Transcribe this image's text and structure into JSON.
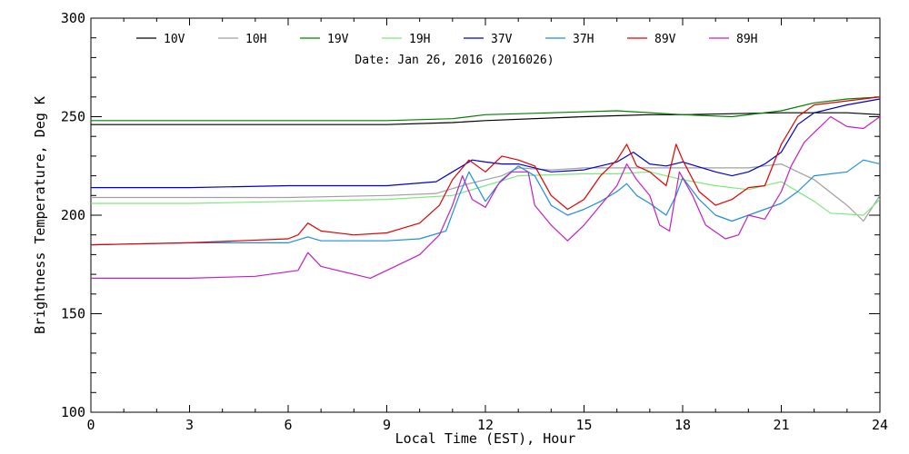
{
  "chart_data": {
    "type": "line",
    "title": "Date: Jan 26, 2016 (2016026)",
    "xlabel": "Local Time (EST), Hour",
    "ylabel": "Brightness Temperature, Deg K",
    "xlim": [
      0,
      24
    ],
    "ylim": [
      100,
      300
    ],
    "x_ticks": [
      "0",
      "3",
      "6",
      "9",
      "12",
      "15",
      "18",
      "21",
      "24"
    ],
    "y_ticks": [
      "100",
      "150",
      "200",
      "250",
      "300"
    ],
    "grid": false,
    "legend_position": "top",
    "series": [
      {
        "name": "10V",
        "color": "#000000",
        "points": [
          [
            0,
            246
          ],
          [
            3,
            246
          ],
          [
            6,
            246
          ],
          [
            9,
            246
          ],
          [
            11,
            247
          ],
          [
            12,
            248
          ],
          [
            15,
            250
          ],
          [
            17,
            251
          ],
          [
            18,
            251
          ],
          [
            21,
            252
          ],
          [
            23,
            252
          ],
          [
            24,
            251
          ]
        ]
      },
      {
        "name": "10H",
        "color": "#a0a0a0",
        "points": [
          [
            0,
            209
          ],
          [
            3,
            209
          ],
          [
            6,
            209
          ],
          [
            9,
            210
          ],
          [
            10.5,
            211
          ],
          [
            11.5,
            216
          ],
          [
            12.5,
            220
          ],
          [
            13,
            224
          ],
          [
            14,
            223
          ],
          [
            15,
            224
          ],
          [
            16.5,
            224
          ],
          [
            18,
            224
          ],
          [
            20,
            224
          ],
          [
            21,
            226
          ],
          [
            22,
            218
          ],
          [
            23,
            205
          ],
          [
            23.5,
            197
          ],
          [
            24,
            210
          ]
        ]
      },
      {
        "name": "19V",
        "color": "#008000",
        "points": [
          [
            0,
            248
          ],
          [
            3,
            248
          ],
          [
            6,
            248
          ],
          [
            9,
            248
          ],
          [
            11,
            249
          ],
          [
            12,
            251
          ],
          [
            14,
            252
          ],
          [
            16,
            253
          ],
          [
            18,
            251
          ],
          [
            19.5,
            250
          ],
          [
            21,
            253
          ],
          [
            22,
            257
          ],
          [
            23,
            259
          ],
          [
            24,
            260
          ]
        ]
      },
      {
        "name": "19H",
        "color": "#7ee87e",
        "points": [
          [
            0,
            206
          ],
          [
            3,
            206
          ],
          [
            6,
            207
          ],
          [
            9,
            208
          ],
          [
            11,
            210
          ],
          [
            12,
            215
          ],
          [
            13,
            220
          ],
          [
            15,
            221
          ],
          [
            16,
            221
          ],
          [
            17,
            222
          ],
          [
            18,
            218
          ],
          [
            19,
            215
          ],
          [
            20,
            213
          ],
          [
            21,
            217
          ],
          [
            22,
            207
          ],
          [
            22.5,
            201
          ],
          [
            23.5,
            200
          ],
          [
            24,
            208
          ]
        ]
      },
      {
        "name": "37V",
        "color": "#0000cc",
        "points": [
          [
            0,
            214
          ],
          [
            3,
            214
          ],
          [
            6,
            215
          ],
          [
            9,
            215
          ],
          [
            10.5,
            217
          ],
          [
            11,
            222
          ],
          [
            11.6,
            228
          ],
          [
            12,
            227
          ],
          [
            12.5,
            226
          ],
          [
            13,
            226
          ],
          [
            13.5,
            224
          ],
          [
            14,
            222
          ],
          [
            15,
            223
          ],
          [
            16,
            227
          ],
          [
            16.5,
            232
          ],
          [
            17,
            226
          ],
          [
            17.5,
            225
          ],
          [
            18,
            227
          ],
          [
            19,
            222
          ],
          [
            19.5,
            220
          ],
          [
            20,
            222
          ],
          [
            20.5,
            226
          ],
          [
            21,
            232
          ],
          [
            21.5,
            246
          ],
          [
            22,
            252
          ],
          [
            23,
            256
          ],
          [
            24,
            259
          ]
        ]
      },
      {
        "name": "37H",
        "color": "#1e8ee0",
        "points": [
          [
            0,
            185
          ],
          [
            3,
            186
          ],
          [
            6,
            186
          ],
          [
            6.6,
            189
          ],
          [
            7,
            187
          ],
          [
            9,
            187
          ],
          [
            10,
            188
          ],
          [
            10.8,
            192
          ],
          [
            11.2,
            210
          ],
          [
            11.5,
            222
          ],
          [
            12,
            207
          ],
          [
            12.5,
            218
          ],
          [
            13,
            225
          ],
          [
            13.5,
            220
          ],
          [
            14,
            205
          ],
          [
            14.5,
            200
          ],
          [
            15,
            203
          ],
          [
            15.5,
            207
          ],
          [
            16,
            212
          ],
          [
            16.3,
            216
          ],
          [
            16.6,
            210
          ],
          [
            17,
            206
          ],
          [
            17.5,
            200
          ],
          [
            17.8,
            210
          ],
          [
            18,
            219
          ],
          [
            18.5,
            208
          ],
          [
            19,
            200
          ],
          [
            19.5,
            197
          ],
          [
            20,
            200
          ],
          [
            20.5,
            203
          ],
          [
            21,
            206
          ],
          [
            21.5,
            212
          ],
          [
            22,
            220
          ],
          [
            23,
            222
          ],
          [
            23.5,
            228
          ],
          [
            24,
            226
          ]
        ]
      },
      {
        "name": "89V",
        "color": "#e00000",
        "points": [
          [
            0,
            185
          ],
          [
            3,
            186
          ],
          [
            6,
            188
          ],
          [
            6.3,
            190
          ],
          [
            6.6,
            196
          ],
          [
            7,
            192
          ],
          [
            8,
            190
          ],
          [
            9,
            191
          ],
          [
            10,
            196
          ],
          [
            10.6,
            205
          ],
          [
            11,
            218
          ],
          [
            11.5,
            228
          ],
          [
            12,
            222
          ],
          [
            12.5,
            230
          ],
          [
            13,
            228
          ],
          [
            13.5,
            225
          ],
          [
            14,
            210
          ],
          [
            14.5,
            203
          ],
          [
            15,
            208
          ],
          [
            15.5,
            220
          ],
          [
            16,
            228
          ],
          [
            16.3,
            236
          ],
          [
            16.6,
            225
          ],
          [
            17,
            222
          ],
          [
            17.5,
            215
          ],
          [
            17.8,
            236
          ],
          [
            18,
            228
          ],
          [
            18.5,
            212
          ],
          [
            19,
            205
          ],
          [
            19.5,
            208
          ],
          [
            20,
            214
          ],
          [
            20.5,
            215
          ],
          [
            21,
            236
          ],
          [
            21.5,
            250
          ],
          [
            22,
            256
          ],
          [
            23,
            258
          ],
          [
            24,
            260
          ]
        ]
      },
      {
        "name": "89H",
        "color": "#c020c0",
        "points": [
          [
            0,
            168
          ],
          [
            3,
            168
          ],
          [
            5,
            169
          ],
          [
            6.3,
            172
          ],
          [
            6.6,
            181
          ],
          [
            7,
            174
          ],
          [
            8,
            170
          ],
          [
            8.5,
            168
          ],
          [
            9,
            172
          ],
          [
            10,
            180
          ],
          [
            10.6,
            190
          ],
          [
            11,
            205
          ],
          [
            11.3,
            220
          ],
          [
            11.6,
            208
          ],
          [
            12,
            204
          ],
          [
            12.4,
            216
          ],
          [
            12.8,
            222
          ],
          [
            13.3,
            222
          ],
          [
            13.5,
            205
          ],
          [
            14,
            195
          ],
          [
            14.5,
            187
          ],
          [
            15,
            195
          ],
          [
            15.5,
            205
          ],
          [
            16,
            215
          ],
          [
            16.3,
            226
          ],
          [
            16.6,
            218
          ],
          [
            17,
            210
          ],
          [
            17.3,
            195
          ],
          [
            17.6,
            192
          ],
          [
            17.9,
            222
          ],
          [
            18.3,
            210
          ],
          [
            18.7,
            195
          ],
          [
            19.3,
            188
          ],
          [
            19.7,
            190
          ],
          [
            20,
            200
          ],
          [
            20.5,
            198
          ],
          [
            21,
            212
          ],
          [
            21.3,
            225
          ],
          [
            21.7,
            237
          ],
          [
            22,
            242
          ],
          [
            22.5,
            250
          ],
          [
            23,
            245
          ],
          [
            23.5,
            244
          ],
          [
            24,
            250
          ]
        ]
      }
    ]
  }
}
